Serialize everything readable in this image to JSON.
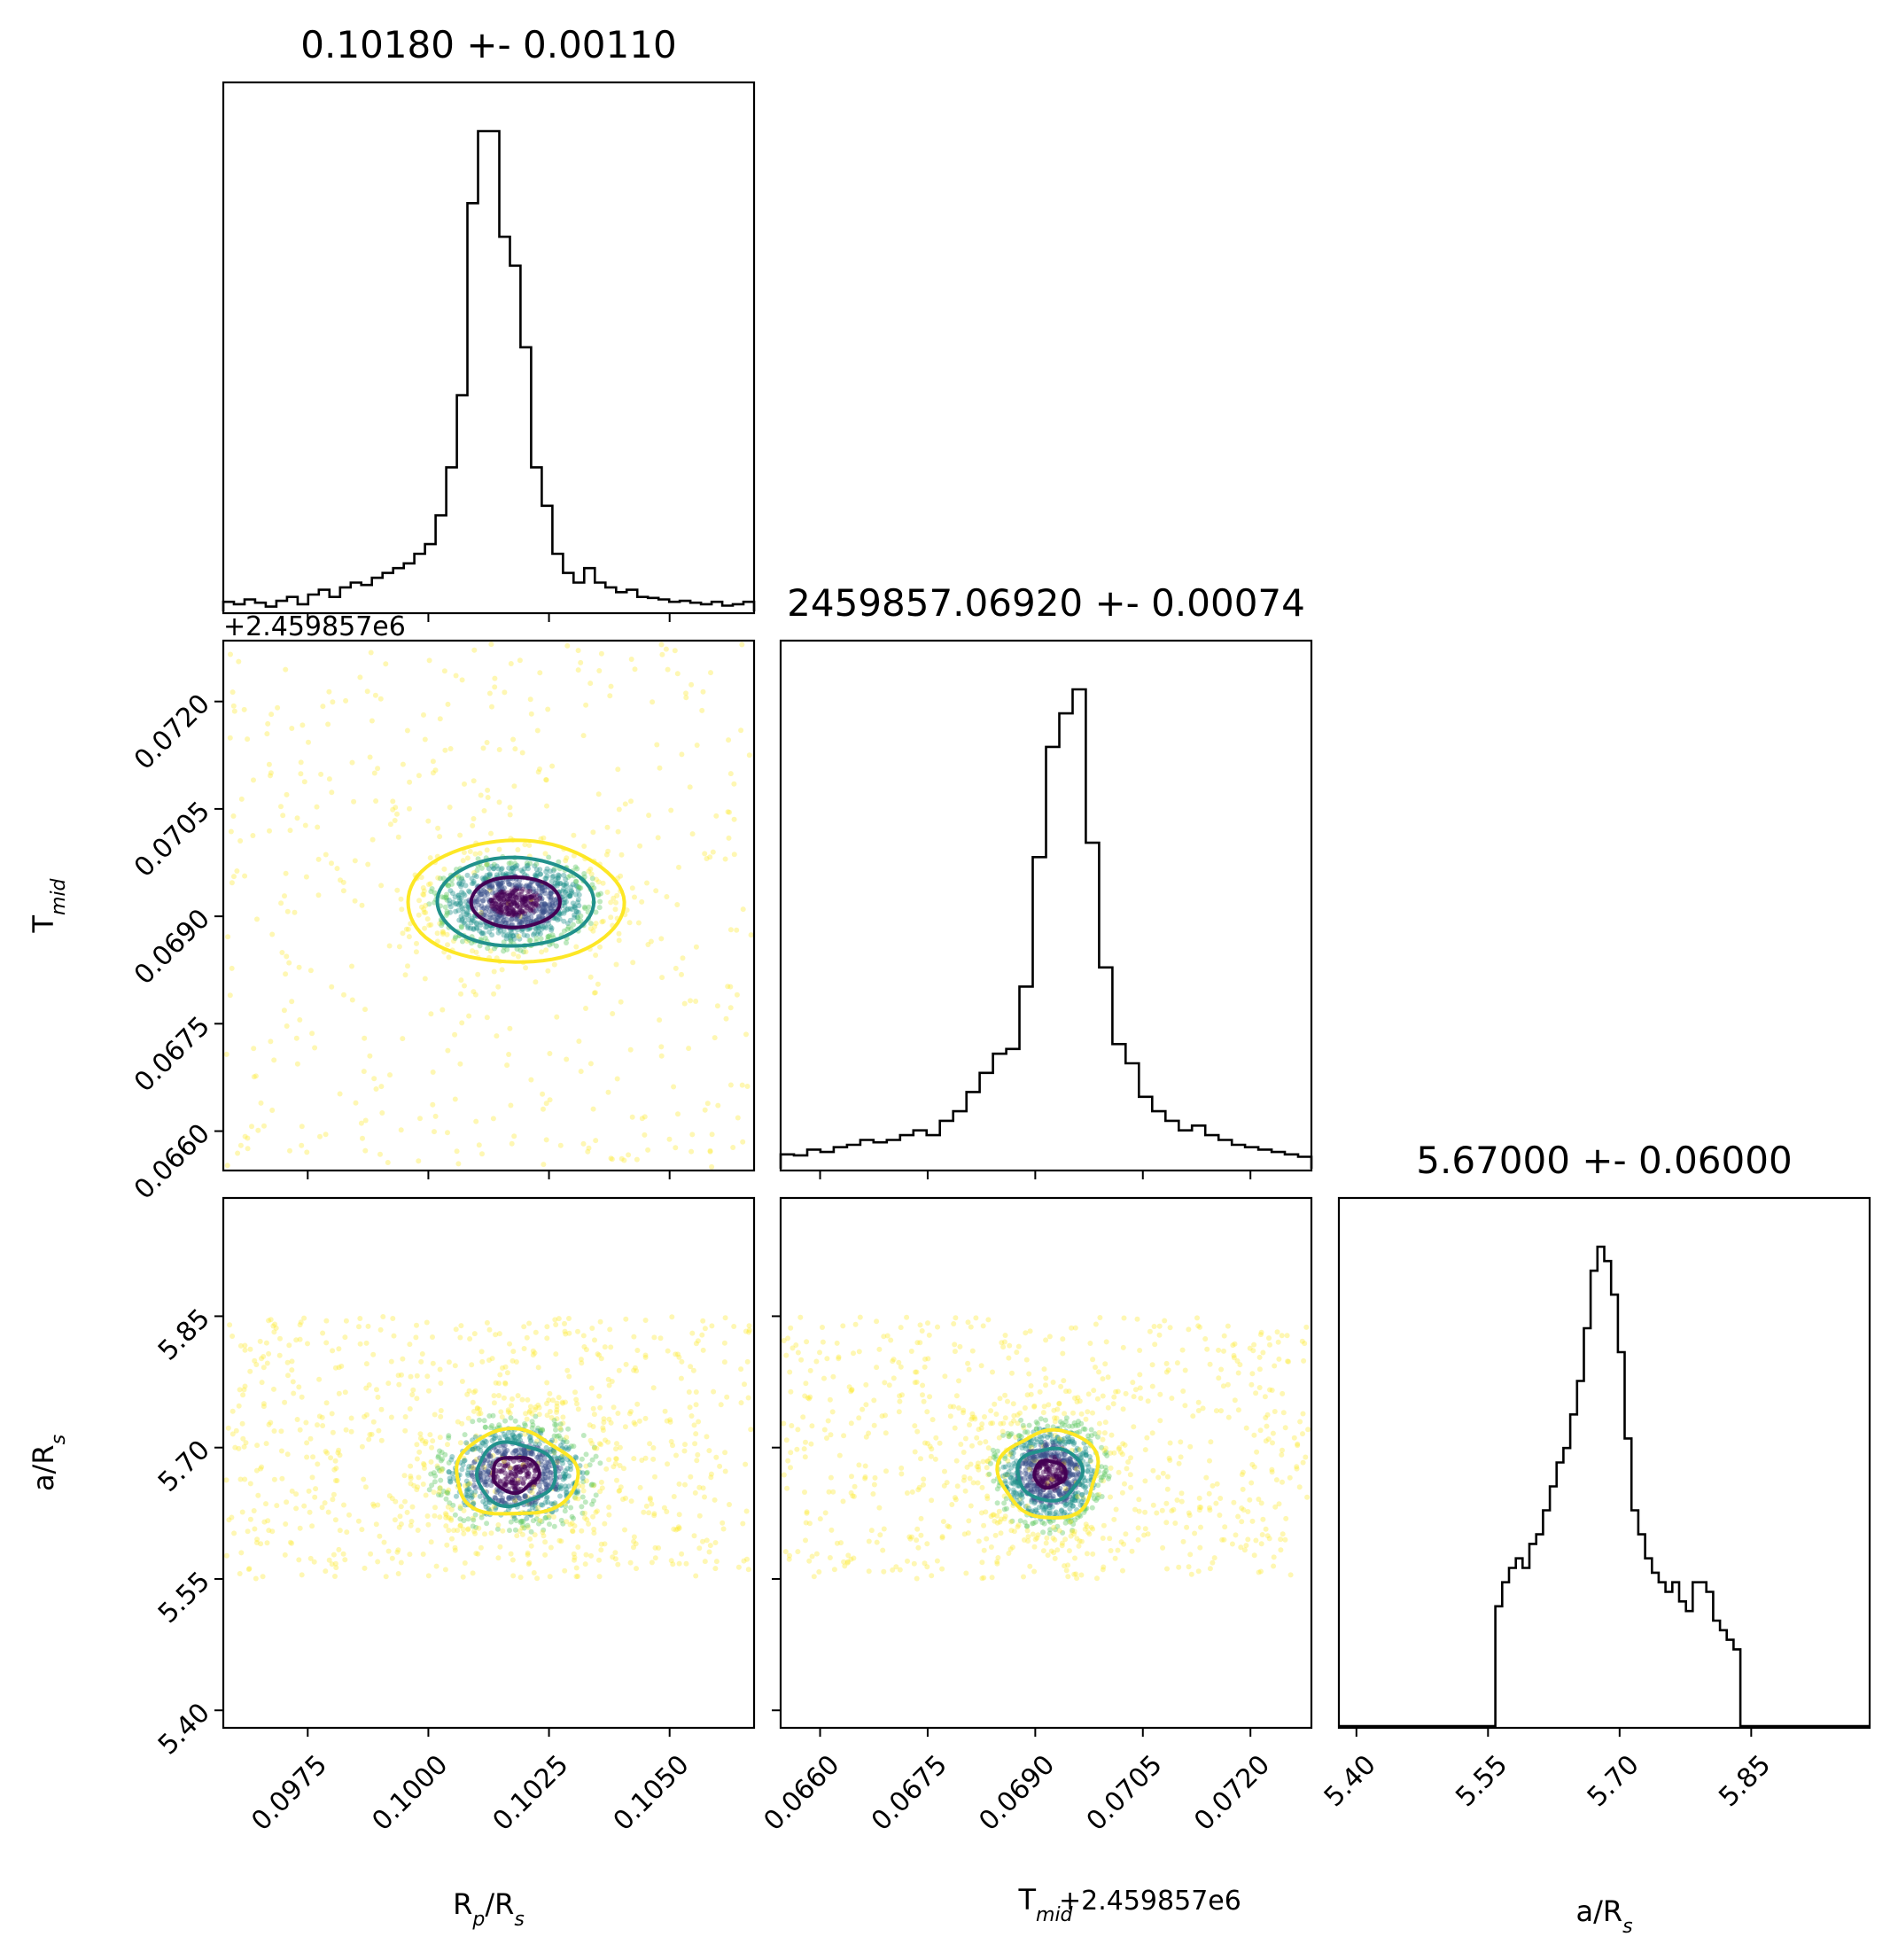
{
  "chart_data": {
    "type": "corner",
    "parameters": [
      {
        "key": "rp",
        "label": "R_p/R_s",
        "title": "0.10180 +- 0.00110",
        "range": [
          0.09575,
          0.10675
        ],
        "ticks": [
          "0.0975",
          "0.1000",
          "0.1025",
          "0.1050"
        ],
        "tick_values": [
          0.0975,
          0.1,
          0.1025,
          0.105
        ]
      },
      {
        "key": "tmid",
        "label": "T_mid",
        "title": "2459857.06920 +- 0.00074",
        "offset": "+2.459857e6",
        "range": [
          0.06545,
          0.07285
        ],
        "ticks": [
          "0.0660",
          "0.0675",
          "0.0690",
          "0.0705",
          "0.0720"
        ],
        "tick_values": [
          0.066,
          0.0675,
          0.069,
          0.0705,
          0.072
        ]
      },
      {
        "key": "ars",
        "label": "a/R_s",
        "title": "5.67000 +- 0.06000",
        "range": [
          5.38,
          5.985
        ],
        "ticks": [
          "5.40",
          "5.55",
          "5.70",
          "5.85"
        ],
        "tick_values": [
          5.4,
          5.55,
          5.7,
          5.85
        ]
      }
    ],
    "histograms": {
      "rp": [
        0.02,
        0.015,
        0.025,
        0.018,
        0.01,
        0.022,
        0.03,
        0.015,
        0.035,
        0.045,
        0.03,
        0.05,
        0.06,
        0.055,
        0.07,
        0.08,
        0.09,
        0.1,
        0.12,
        0.14,
        0.2,
        0.3,
        0.45,
        0.85,
        1.0,
        1.0,
        0.78,
        0.72,
        0.55,
        0.3,
        0.22,
        0.12,
        0.08,
        0.06,
        0.09,
        0.06,
        0.05,
        0.04,
        0.045,
        0.03,
        0.028,
        0.025,
        0.02,
        0.022,
        0.018,
        0.015,
        0.02,
        0.012,
        0.015,
        0.02
      ],
      "tmid": [
        0.03,
        0.028,
        0.04,
        0.035,
        0.045,
        0.05,
        0.06,
        0.055,
        0.06,
        0.07,
        0.08,
        0.07,
        0.1,
        0.12,
        0.16,
        0.2,
        0.24,
        0.25,
        0.38,
        0.65,
        0.88,
        0.95,
        1.0,
        0.68,
        0.42,
        0.26,
        0.22,
        0.15,
        0.12,
        0.1,
        0.08,
        0.09,
        0.07,
        0.06,
        0.05,
        0.045,
        0.04,
        0.035,
        0.03,
        0.025
      ],
      "ars": [
        0,
        0,
        0,
        0,
        0,
        0,
        0,
        0,
        0,
        0,
        0,
        0,
        0,
        0,
        0,
        0,
        0,
        0,
        0,
        0,
        0,
        0,
        0,
        0.25,
        0.3,
        0.33,
        0.35,
        0.33,
        0.38,
        0.4,
        0.45,
        0.5,
        0.55,
        0.58,
        0.65,
        0.72,
        0.83,
        0.95,
        1.0,
        0.97,
        0.9,
        0.78,
        0.6,
        0.45,
        0.4,
        0.35,
        0.32,
        0.3,
        0.28,
        0.3,
        0.26,
        0.24,
        0.3,
        0.3,
        0.28,
        0.22,
        0.2,
        0.18,
        0.16,
        0,
        0,
        0,
        0,
        0,
        0,
        0,
        0,
        0,
        0,
        0,
        0,
        0,
        0,
        0,
        0,
        0,
        0,
        0
      ]
    },
    "scatter_colors": [
      "#fde725",
      "#5ec962",
      "#21918c",
      "#3b528b",
      "#440154"
    ],
    "contour_colors": [
      "#fde725",
      "#21918c",
      "#440154"
    ],
    "grid": false
  }
}
